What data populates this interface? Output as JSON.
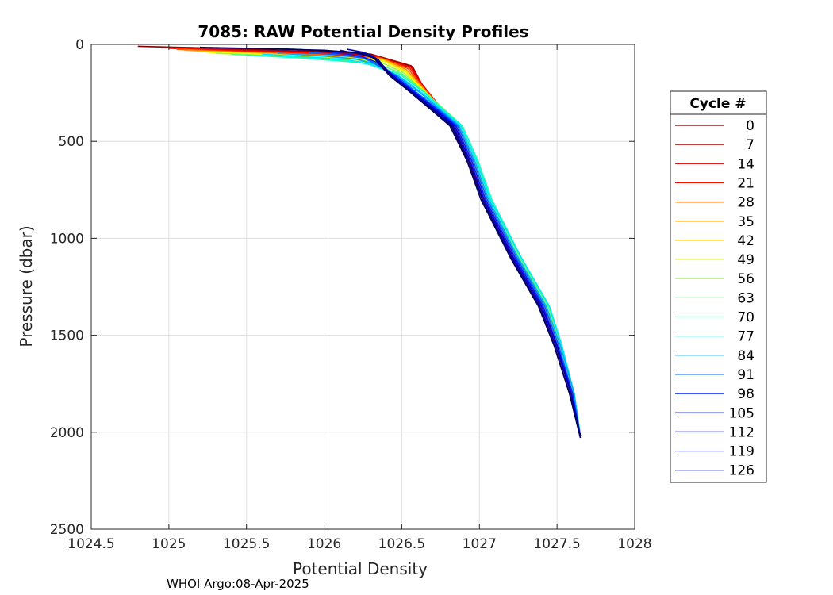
{
  "chart_data": {
    "type": "line",
    "title": "7085: RAW Potential Density Profiles",
    "xlabel": "Potential Density",
    "ylabel": "Pressure (dbar)",
    "xlim": [
      1024.5,
      1028
    ],
    "ylim": [
      0,
      2500
    ],
    "y_reversed": true,
    "grid": true,
    "x_ticks": [
      "1024.5",
      "1025",
      "1025.5",
      "1026",
      "1026.5",
      "1027",
      "1027.5",
      "1028"
    ],
    "y_ticks": [
      "0",
      "500",
      "1000",
      "1500",
      "2000",
      "2500"
    ],
    "credit": "WHOI Argo:08-Apr-2025",
    "legend": {
      "title": "Cycle #",
      "placement": "right-outside",
      "entries": [
        {
          "label": "0",
          "color": "#800000"
        },
        {
          "label": "7",
          "color": "#b00000"
        },
        {
          "label": "14",
          "color": "#df0000"
        },
        {
          "label": "21",
          "color": "#ff1100"
        },
        {
          "label": "28",
          "color": "#ff5500"
        },
        {
          "label": "35",
          "color": "#ff9900"
        },
        {
          "label": "42",
          "color": "#ffcc00"
        },
        {
          "label": "49",
          "color": "#eeff00"
        },
        {
          "label": "56",
          "color": "#99ff33"
        },
        {
          "label": "63",
          "color": "#55ff77"
        },
        {
          "label": "70",
          "color": "#11ffbb"
        },
        {
          "label": "77",
          "color": "#00e6ff"
        },
        {
          "label": "84",
          "color": "#00aaff"
        },
        {
          "label": "91",
          "color": "#0066ff"
        },
        {
          "label": "98",
          "color": "#0022ff"
        },
        {
          "label": "105",
          "color": "#0000dd"
        },
        {
          "label": "112",
          "color": "#0000aa"
        },
        {
          "label": "119",
          "color": "#000080"
        },
        {
          "label": "126",
          "color": "#000060"
        }
      ]
    },
    "series": [
      {
        "name": "0",
        "color": "#800000",
        "x": [
          1024.8,
          1025.3,
          1025.9,
          1026.3,
          1026.56,
          1026.62,
          1026.72,
          1026.82,
          1026.92,
          1027.02,
          1027.2,
          1027.38,
          1027.48,
          1027.58,
          1027.65
        ],
        "y": [
          10,
          20,
          35,
          50,
          110,
          200,
          300,
          420,
          600,
          800,
          1100,
          1350,
          1550,
          1800,
          2020
        ]
      },
      {
        "name": "7",
        "color": "#b00000",
        "x": [
          1024.95,
          1025.4,
          1025.95,
          1026.32,
          1026.57,
          1026.63,
          1026.73,
          1026.83,
          1026.93,
          1027.03,
          1027.21,
          1027.39,
          1027.49,
          1027.59,
          1027.65
        ],
        "y": [
          15,
          25,
          40,
          55,
          115,
          205,
          305,
          420,
          600,
          800,
          1100,
          1350,
          1550,
          1800,
          2020
        ]
      },
      {
        "name": "14",
        "color": "#df0000",
        "x": [
          1025.0,
          1025.45,
          1026.0,
          1026.33,
          1026.56,
          1026.63,
          1026.73,
          1026.83,
          1026.93,
          1027.02,
          1027.21,
          1027.39,
          1027.49,
          1027.59,
          1027.65
        ],
        "y": [
          18,
          30,
          45,
          60,
          118,
          205,
          305,
          420,
          600,
          800,
          1100,
          1350,
          1550,
          1800,
          2020
        ]
      },
      {
        "name": "21",
        "color": "#ff1100",
        "x": [
          1025.0,
          1025.5,
          1026.05,
          1026.35,
          1026.55,
          1026.63,
          1026.73,
          1026.84,
          1026.94,
          1027.03,
          1027.22,
          1027.4,
          1027.5,
          1027.6,
          1027.65
        ],
        "y": [
          20,
          35,
          50,
          65,
          120,
          210,
          310,
          420,
          600,
          800,
          1100,
          1350,
          1550,
          1800,
          2020
        ]
      },
      {
        "name": "28",
        "color": "#ff5500",
        "x": [
          1025.05,
          1025.5,
          1026.05,
          1026.36,
          1026.54,
          1026.63,
          1026.74,
          1026.85,
          1026.95,
          1027.04,
          1027.23,
          1027.41,
          1027.5,
          1027.6,
          1027.65
        ],
        "y": [
          25,
          40,
          55,
          70,
          125,
          215,
          315,
          420,
          600,
          800,
          1100,
          1350,
          1550,
          1800,
          2020
        ]
      },
      {
        "name": "35",
        "color": "#ff9900",
        "x": [
          1025.1,
          1025.6,
          1026.1,
          1026.38,
          1026.53,
          1026.63,
          1026.74,
          1026.85,
          1026.95,
          1027.04,
          1027.23,
          1027.41,
          1027.51,
          1027.6,
          1027.65
        ],
        "y": [
          30,
          45,
          60,
          75,
          130,
          220,
          320,
          420,
          600,
          800,
          1100,
          1350,
          1550,
          1800,
          2020
        ]
      },
      {
        "name": "42",
        "color": "#ffcc00",
        "x": [
          1025.2,
          1025.65,
          1026.1,
          1026.38,
          1026.52,
          1026.63,
          1026.75,
          1026.86,
          1026.96,
          1027.05,
          1027.24,
          1027.42,
          1027.51,
          1027.6,
          1027.65
        ],
        "y": [
          35,
          50,
          65,
          80,
          135,
          225,
          325,
          420,
          600,
          800,
          1100,
          1350,
          1550,
          1800,
          2020
        ]
      },
      {
        "name": "49",
        "color": "#eeff00",
        "x": [
          1025.25,
          1025.7,
          1026.15,
          1026.38,
          1026.52,
          1026.63,
          1026.76,
          1026.87,
          1026.97,
          1027.06,
          1027.25,
          1027.43,
          1027.52,
          1027.61,
          1027.65
        ],
        "y": [
          40,
          55,
          70,
          85,
          140,
          230,
          330,
          420,
          600,
          800,
          1100,
          1350,
          1550,
          1800,
          2020
        ]
      },
      {
        "name": "56",
        "color": "#99ff33",
        "x": [
          1025.3,
          1025.7,
          1026.15,
          1026.36,
          1026.51,
          1026.63,
          1026.77,
          1026.88,
          1026.98,
          1027.07,
          1027.26,
          1027.44,
          1027.52,
          1027.61,
          1027.65
        ],
        "y": [
          45,
          60,
          75,
          90,
          145,
          235,
          335,
          420,
          600,
          800,
          1100,
          1350,
          1550,
          1800,
          2020
        ]
      },
      {
        "name": "63",
        "color": "#55ff77",
        "x": [
          1025.4,
          1025.8,
          1026.1,
          1026.33,
          1026.5,
          1026.64,
          1026.78,
          1026.89,
          1026.99,
          1027.07,
          1027.26,
          1027.44,
          1027.53,
          1027.61,
          1027.65
        ],
        "y": [
          50,
          65,
          80,
          95,
          150,
          240,
          340,
          420,
          600,
          800,
          1100,
          1350,
          1550,
          1800,
          2020
        ]
      },
      {
        "name": "70",
        "color": "#11ffbb",
        "x": [
          1025.5,
          1025.85,
          1026.1,
          1026.3,
          1026.49,
          1026.64,
          1026.78,
          1026.89,
          1026.99,
          1027.08,
          1027.27,
          1027.45,
          1027.53,
          1027.61,
          1027.65
        ],
        "y": [
          55,
          70,
          85,
          100,
          155,
          245,
          345,
          420,
          600,
          800,
          1100,
          1350,
          1550,
          1800,
          2020
        ]
      },
      {
        "name": "77",
        "color": "#00e6ff",
        "x": [
          1025.6,
          1025.9,
          1026.15,
          1026.3,
          1026.48,
          1026.63,
          1026.77,
          1026.88,
          1026.98,
          1027.07,
          1027.27,
          1027.45,
          1027.53,
          1027.61,
          1027.65
        ],
        "y": [
          50,
          65,
          80,
          105,
          160,
          250,
          345,
          420,
          600,
          800,
          1100,
          1350,
          1550,
          1800,
          2020
        ]
      },
      {
        "name": "84",
        "color": "#00aaff",
        "x": [
          1025.7,
          1026.0,
          1026.2,
          1026.32,
          1026.47,
          1026.62,
          1026.76,
          1026.87,
          1026.97,
          1027.06,
          1027.25,
          1027.43,
          1027.52,
          1027.61,
          1027.65
        ],
        "y": [
          45,
          60,
          75,
          100,
          160,
          250,
          345,
          420,
          600,
          800,
          1100,
          1350,
          1550,
          1800,
          2020
        ]
      },
      {
        "name": "91",
        "color": "#0066ff",
        "x": [
          1025.9,
          1026.1,
          1026.25,
          1026.32,
          1026.46,
          1026.6,
          1026.75,
          1026.86,
          1026.96,
          1027.05,
          1027.24,
          1027.42,
          1027.51,
          1027.6,
          1027.65
        ],
        "y": [
          40,
          55,
          70,
          95,
          160,
          250,
          345,
          420,
          600,
          800,
          1100,
          1350,
          1550,
          1800,
          2020
        ]
      },
      {
        "name": "98",
        "color": "#0022ff",
        "x": [
          1026.0,
          1026.15,
          1026.25,
          1026.33,
          1026.45,
          1026.59,
          1026.74,
          1026.85,
          1026.95,
          1027.04,
          1027.23,
          1027.41,
          1027.5,
          1027.6,
          1027.65
        ],
        "y": [
          35,
          50,
          65,
          90,
          160,
          250,
          345,
          420,
          600,
          800,
          1100,
          1350,
          1550,
          1800,
          2020
        ]
      },
      {
        "name": "105",
        "color": "#0000dd",
        "x": [
          1026.1,
          1026.2,
          1026.3,
          1026.35,
          1026.44,
          1026.58,
          1026.73,
          1026.84,
          1026.94,
          1027.03,
          1027.22,
          1027.4,
          1027.5,
          1027.59,
          1027.65
        ],
        "y": [
          30,
          45,
          60,
          85,
          160,
          250,
          345,
          420,
          600,
          800,
          1100,
          1350,
          1550,
          1800,
          2020
        ]
      },
      {
        "name": "112",
        "color": "#0000aa",
        "x": [
          1026.15,
          1026.25,
          1026.3,
          1026.35,
          1026.43,
          1026.57,
          1026.72,
          1026.83,
          1026.93,
          1027.02,
          1027.21,
          1027.39,
          1027.49,
          1027.59,
          1027.65
        ],
        "y": [
          25,
          40,
          55,
          80,
          160,
          250,
          345,
          420,
          600,
          800,
          1100,
          1350,
          1550,
          1800,
          2020
        ]
      },
      {
        "name": "119",
        "color": "#000080",
        "x": [
          1025.5,
          1026.0,
          1026.25,
          1026.33,
          1026.43,
          1026.57,
          1026.71,
          1026.82,
          1026.93,
          1027.02,
          1027.2,
          1027.38,
          1027.48,
          1027.58,
          1027.65
        ],
        "y": [
          20,
          30,
          45,
          75,
          160,
          250,
          345,
          420,
          600,
          800,
          1100,
          1350,
          1550,
          1800,
          2020
        ]
      },
      {
        "name": "126",
        "color": "#000060",
        "x": [
          1025.2,
          1025.8,
          1026.2,
          1026.32,
          1026.42,
          1026.56,
          1026.7,
          1026.81,
          1026.92,
          1027.01,
          1027.2,
          1027.38,
          1027.48,
          1027.58,
          1027.65
        ],
        "y": [
          15,
          25,
          40,
          70,
          160,
          250,
          345,
          420,
          600,
          800,
          1100,
          1350,
          1550,
          1800,
          2030
        ]
      }
    ]
  }
}
